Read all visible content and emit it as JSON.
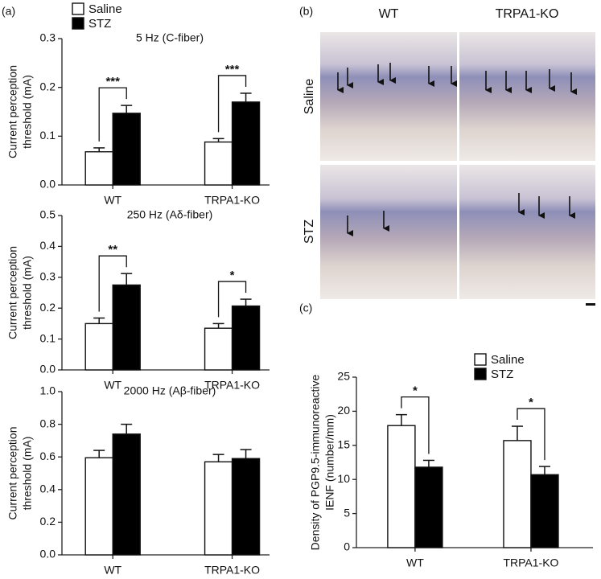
{
  "chart_data": [
    {
      "type": "bar",
      "panel": "(a)",
      "title": "5 Hz (C-fiber)",
      "ylabel": [
        "Current perception",
        "threshold (mA)"
      ],
      "categories": [
        "WT",
        "TRPA1-KO"
      ],
      "series": [
        {
          "name": "Saline",
          "color": "#ffffff",
          "values": [
            0.068,
            0.088
          ],
          "errors": [
            0.008,
            0.007
          ]
        },
        {
          "name": "STZ",
          "color": "#000000",
          "values": [
            0.147,
            0.17
          ],
          "errors": [
            0.016,
            0.018
          ]
        }
      ],
      "ylim": [
        0,
        0.3
      ],
      "yticks": [
        {
          "value": 0,
          "label": "0.0"
        },
        0.1,
        0.2,
        0.3
      ],
      "legend": "top-left",
      "annotations": [
        {
          "text": "***",
          "category": "WT"
        },
        {
          "text": "***",
          "category": "TRPA1-KO"
        }
      ]
    },
    {
      "type": "bar",
      "title": "250 Hz (Aδ-fiber)",
      "ylabel": [
        "Current perception",
        "threshold (mA)"
      ],
      "categories": [
        "WT",
        "TRPA1-KO"
      ],
      "series": [
        {
          "color": "#ffffff",
          "values": [
            0.15,
            0.135
          ],
          "errors": [
            0.018,
            0.015
          ]
        },
        {
          "color": "#000000",
          "values": [
            0.275,
            0.207
          ],
          "errors": [
            0.037,
            0.022
          ]
        }
      ],
      "ylim": [
        0,
        0.5
      ],
      "yticks": [
        {
          "value": 0,
          "label": "0.0"
        },
        0.1,
        0.2,
        0.3,
        0.4,
        0.5
      ],
      "annotations": [
        {
          "text": "**",
          "category": "WT"
        },
        {
          "text": "*",
          "category": "TRPA1-KO"
        }
      ]
    },
    {
      "type": "bar",
      "title": "2000 Hz (Aβ-fiber)",
      "ylabel": [
        "Current perception",
        "threshold (mA)"
      ],
      "categories": [
        "WT",
        "TRPA1-KO"
      ],
      "series": [
        {
          "color": "#ffffff",
          "values": [
            0.595,
            0.57
          ],
          "errors": [
            0.045,
            0.045
          ]
        },
        {
          "color": "#000000",
          "values": [
            0.74,
            0.59
          ],
          "errors": [
            0.06,
            0.055
          ]
        }
      ],
      "ylim": [
        0,
        1.0
      ],
      "yticks": [
        {
          "value": 0,
          "label": "0.0"
        },
        0.2,
        0.4,
        0.6,
        0.8,
        {
          "value": 1.0,
          "label": "1.0"
        }
      ]
    },
    {
      "type": "bar",
      "panel": "(c)",
      "ylabel": [
        "Density of PGP9.5-immunoreactive",
        "IENF (number/mm)"
      ],
      "categories": [
        "WT",
        "TRPA1-KO"
      ],
      "series": [
        {
          "name": "Saline",
          "color": "#ffffff",
          "values": [
            17.9,
            15.7
          ],
          "errors": [
            1.6,
            2.1
          ]
        },
        {
          "name": "STZ",
          "color": "#000000",
          "values": [
            11.8,
            10.7
          ],
          "errors": [
            1.0,
            1.2
          ]
        }
      ],
      "ylim": [
        0,
        25
      ],
      "yticks": [
        0,
        5,
        10,
        15,
        20,
        25
      ],
      "legend": "top-right",
      "annotations": [
        {
          "text": "*",
          "category": "WT"
        },
        {
          "text": "*",
          "category": "TRPA1-KO"
        }
      ]
    }
  ],
  "images": {
    "panel": "(b)",
    "columns": [
      "WT",
      "TRPA1-KO"
    ],
    "rows": [
      "Saline",
      "STZ"
    ]
  }
}
